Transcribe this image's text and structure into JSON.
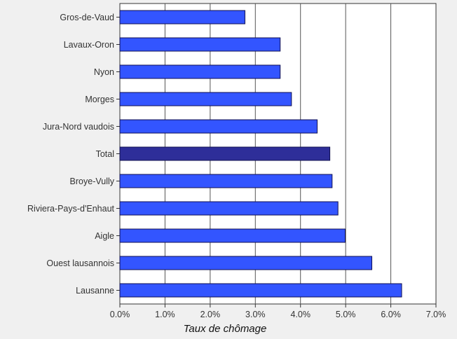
{
  "chart_data": {
    "type": "bar",
    "orientation": "horizontal",
    "categories": [
      "Gros-de-Vaud",
      "Lavaux-Oron",
      "Nyon",
      "Morges",
      "Jura-Nord vaudois",
      "Total",
      "Broye-Vully",
      "Riviera-Pays-d'Enhaut",
      "Aigle",
      "Ouest lausannois",
      "Lausanne"
    ],
    "values": [
      0.0277,
      0.0355,
      0.0355,
      0.038,
      0.0437,
      0.0465,
      0.047,
      0.0483,
      0.0499,
      0.0558,
      0.0624
    ],
    "highlight": "Total",
    "xlabel": "Taux de chômage",
    "xlim": [
      0,
      0.07
    ],
    "xticks": [
      "0.0%",
      "1.0%",
      "2.0%",
      "3.0%",
      "4.0%",
      "5.0%",
      "6.0%",
      "7.0%"
    ],
    "grid": true,
    "colors": {
      "bar": "#3355ff",
      "highlight": "#2e2e99",
      "edge": "#101050",
      "grid": "#555555",
      "plot_bg": "#ffffff",
      "page_bg": "#f0f0f0"
    }
  }
}
